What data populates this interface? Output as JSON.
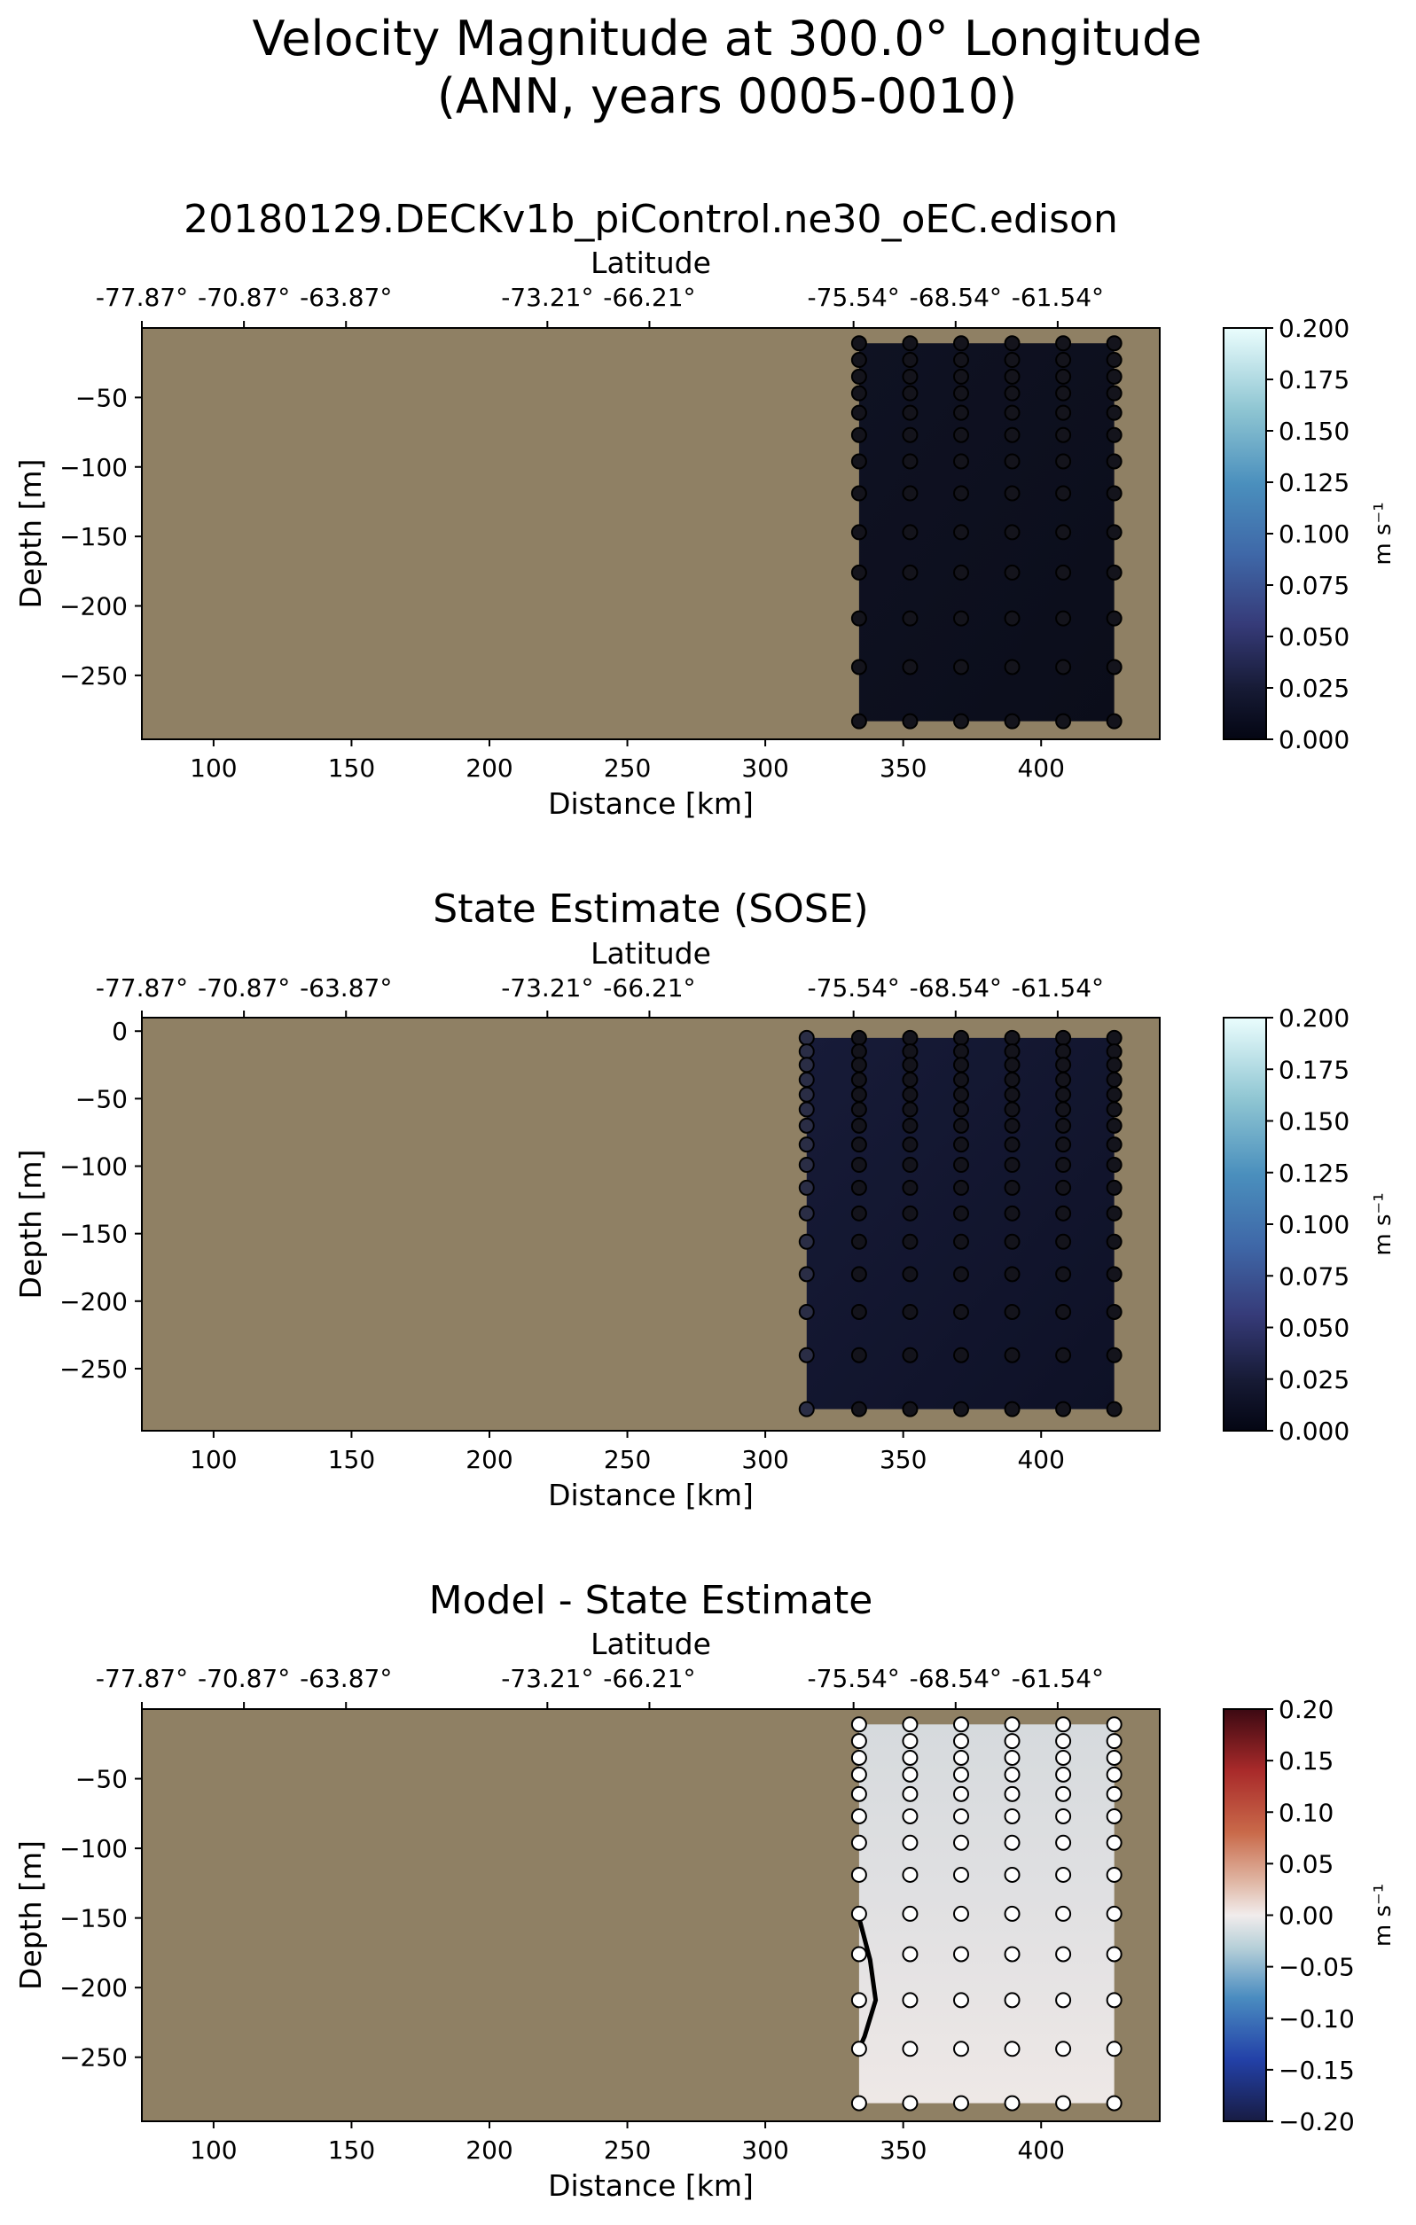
{
  "figure": {
    "title_line1": "Velocity Magnitude at 300.0° Longitude",
    "title_line2": "(ANN, years 0005-0010)"
  },
  "colors": {
    "land": "#8f8064",
    "dark_fill": "#0d0f1e",
    "dark_fill2": "#131731",
    "diff_top": "#d7dbde",
    "diff_bottom": "#ece8e6",
    "marker_dark": "#14141c",
    "marker_light": "#ffffff"
  },
  "chart_data": [
    {
      "type": "section",
      "title": "20180129.DECKv1b_piControl.ne30_oEC.edison",
      "xlabel": "Distance [km]",
      "ylabel": "Depth [m]",
      "top_xlabel": "Latitude",
      "xlim": [
        74,
        443
      ],
      "ylim": [
        -296,
        0
      ],
      "xticks": [
        "100",
        "150",
        "200",
        "250",
        "300",
        "350",
        "400"
      ],
      "xtick_values": [
        100,
        150,
        200,
        250,
        300,
        350,
        400
      ],
      "yticks": [
        "−50",
        "−100",
        "−150",
        "−200",
        "−250"
      ],
      "ytick_values": [
        -50,
        -100,
        -150,
        -200,
        -250
      ],
      "lat_ticks": [
        "-77.87°",
        "-70.87°",
        "-63.87°",
        "-73.21°",
        "-66.21°",
        "-75.54°",
        "-68.54°",
        "-61.54°"
      ],
      "lat_tick_positions": [
        74,
        111,
        148,
        221,
        258,
        332,
        369,
        406
      ],
      "data_columns_km": [
        334,
        352.5,
        371,
        389.5,
        408,
        426.5
      ],
      "data_depths_m": [
        -11,
        -23,
        -35,
        -47,
        -61,
        -77,
        -96,
        -119,
        -147,
        -176,
        -209,
        -244,
        -283
      ],
      "data_region": {
        "x": [
          334,
          426.5
        ],
        "top": -11,
        "bottom": -283
      },
      "marker_style": "dark",
      "colorbar": {
        "label": "m s⁻¹",
        "range": [
          0,
          0.2
        ],
        "ticks": [
          "0.000",
          "0.025",
          "0.050",
          "0.075",
          "0.100",
          "0.125",
          "0.150",
          "0.175",
          "0.200"
        ],
        "tick_values": [
          0,
          0.025,
          0.05,
          0.075,
          0.1,
          0.125,
          0.15,
          0.175,
          0.2
        ],
        "cmap": "ice"
      }
    },
    {
      "type": "section",
      "title": "State Estimate (SOSE)",
      "xlabel": "Distance [km]",
      "ylabel": "Depth [m]",
      "top_xlabel": "Latitude",
      "xlim": [
        74,
        443
      ],
      "ylim": [
        -296,
        10
      ],
      "xticks": [
        "100",
        "150",
        "200",
        "250",
        "300",
        "350",
        "400"
      ],
      "xtick_values": [
        100,
        150,
        200,
        250,
        300,
        350,
        400
      ],
      "yticks": [
        "0",
        "−50",
        "−100",
        "−150",
        "−200",
        "−250"
      ],
      "ytick_values": [
        0,
        -50,
        -100,
        -150,
        -200,
        -250
      ],
      "lat_ticks": [
        "-77.87°",
        "-70.87°",
        "-63.87°",
        "-73.21°",
        "-66.21°",
        "-75.54°",
        "-68.54°",
        "-61.54°"
      ],
      "lat_tick_positions": [
        74,
        111,
        148,
        221,
        258,
        332,
        369,
        406
      ],
      "data_columns_km": [
        315,
        334,
        352.5,
        371,
        389.5,
        408,
        426.5
      ],
      "data_depths_m": [
        -5,
        -15,
        -25,
        -36,
        -47,
        -58,
        -70,
        -84,
        -99,
        -116,
        -135,
        -156,
        -180,
        -208,
        -240,
        -280
      ],
      "data_region": {
        "x": [
          315,
          426.5
        ],
        "top": -5,
        "bottom": -280
      },
      "marker_style": "dark",
      "colorbar": {
        "label": "m s⁻¹",
        "range": [
          0,
          0.2
        ],
        "ticks": [
          "0.000",
          "0.025",
          "0.050",
          "0.075",
          "0.100",
          "0.125",
          "0.150",
          "0.175",
          "0.200"
        ],
        "tick_values": [
          0,
          0.025,
          0.05,
          0.075,
          0.1,
          0.125,
          0.15,
          0.175,
          0.2
        ],
        "cmap": "ice"
      }
    },
    {
      "type": "section",
      "title": "Model - State Estimate",
      "xlabel": "Distance [km]",
      "ylabel": "Depth [m]",
      "top_xlabel": "Latitude",
      "xlim": [
        74,
        443
      ],
      "ylim": [
        -296,
        0
      ],
      "xticks": [
        "100",
        "150",
        "200",
        "250",
        "300",
        "350",
        "400"
      ],
      "xtick_values": [
        100,
        150,
        200,
        250,
        300,
        350,
        400
      ],
      "yticks": [
        "−50",
        "−100",
        "−150",
        "−200",
        "−250"
      ],
      "ytick_values": [
        -50,
        -100,
        -150,
        -200,
        -250
      ],
      "lat_ticks": [
        "-77.87°",
        "-70.87°",
        "-63.87°",
        "-73.21°",
        "-66.21°",
        "-75.54°",
        "-68.54°",
        "-61.54°"
      ],
      "lat_tick_positions": [
        74,
        111,
        148,
        221,
        258,
        332,
        369,
        406
      ],
      "data_columns_km": [
        334,
        352.5,
        371,
        389.5,
        408,
        426.5
      ],
      "data_depths_m": [
        -11,
        -23,
        -35,
        -47,
        -61,
        -77,
        -96,
        -119,
        -147,
        -176,
        -209,
        -244,
        -283
      ],
      "data_region": {
        "x": [
          334,
          426.5
        ],
        "top": -11,
        "bottom": -283
      },
      "marker_style": "light",
      "contour_line": [
        [
          334,
          -150
        ],
        [
          338,
          -180
        ],
        [
          340,
          -209
        ],
        [
          336,
          -235
        ],
        [
          334,
          -244
        ]
      ],
      "colorbar": {
        "label": "m s⁻¹",
        "range": [
          -0.2,
          0.2
        ],
        "ticks": [
          "−0.20",
          "−0.15",
          "−0.10",
          "−0.05",
          "0.00",
          "0.05",
          "0.10",
          "0.15",
          "0.20"
        ],
        "tick_values": [
          -0.2,
          -0.15,
          -0.1,
          -0.05,
          0,
          0.05,
          0.1,
          0.15,
          0.2
        ],
        "cmap": "balance"
      }
    }
  ]
}
